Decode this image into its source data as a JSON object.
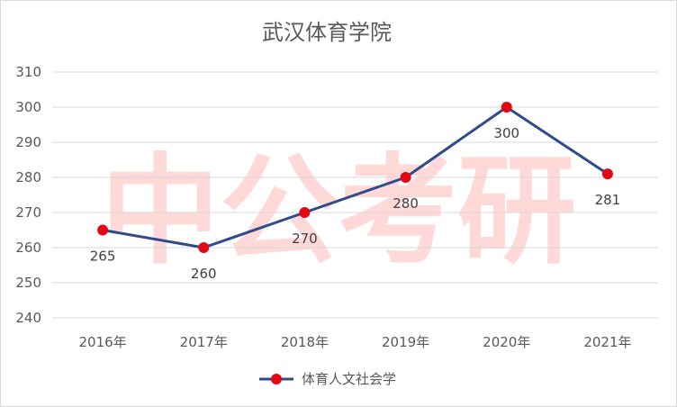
{
  "chart_data": {
    "type": "line",
    "title": "武汉体育学院",
    "categories": [
      "2016年",
      "2017年",
      "2018年",
      "2019年",
      "2020年",
      "2021年"
    ],
    "series": [
      {
        "name": "体育人文社会学",
        "values": [
          265,
          260,
          270,
          280,
          300,
          281
        ],
        "color": "#2f4b8a",
        "marker_color": "#e30613"
      }
    ],
    "yticks": [
      "240",
      "250",
      "260",
      "270",
      "280",
      "290",
      "300",
      "310"
    ],
    "ylim": [
      240,
      310
    ],
    "xlabel": "",
    "ylabel": "",
    "grid": true,
    "legend_position": "bottom",
    "data_labels": [
      "265",
      "260",
      "270",
      "280",
      "300",
      "281"
    ]
  },
  "watermark": {
    "text": "中公考研",
    "color": "#ff4d4d"
  }
}
